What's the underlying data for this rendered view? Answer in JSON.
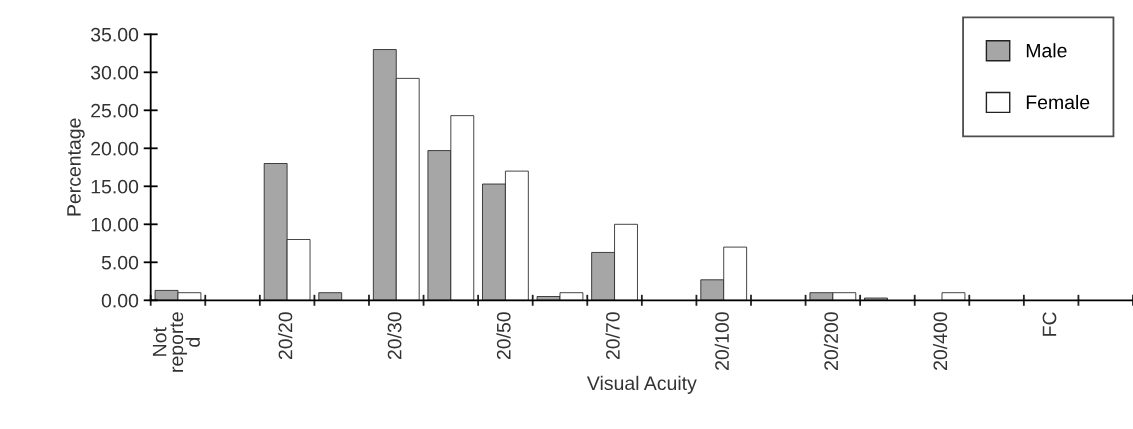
{
  "chart_data": {
    "type": "bar",
    "xlabel": "Visual Acuity",
    "ylabel": "Percentage",
    "categories": [
      "Not\nreporte\nd",
      null,
      "20/20",
      null,
      "20/30",
      null,
      "20/50",
      null,
      "20/70",
      null,
      "20/100",
      null,
      "20/200",
      null,
      "20/400",
      null,
      "FC",
      null
    ],
    "series": [
      {
        "name": "Male",
        "color": "#a6a6a6",
        "values": [
          1.3,
          null,
          18.0,
          1.0,
          33.0,
          19.7,
          15.3,
          0.5,
          6.3,
          null,
          2.7,
          null,
          1.0,
          0.3,
          null,
          null,
          null,
          null
        ]
      },
      {
        "name": "Female",
        "color": "#ffffff",
        "values": [
          1.0,
          null,
          8.0,
          null,
          29.2,
          24.3,
          17.0,
          1.0,
          10.0,
          null,
          7.0,
          null,
          1.0,
          null,
          1.0,
          null,
          null,
          null
        ]
      }
    ],
    "ylim": [
      0,
      35
    ],
    "yticks": [
      {
        "value": 0,
        "label": "0.00"
      },
      {
        "value": 5,
        "label": "5.00"
      },
      {
        "value": 10,
        "label": "10.00"
      },
      {
        "value": 15,
        "label": "15.00"
      },
      {
        "value": 20,
        "label": "20.00"
      },
      {
        "value": 25,
        "label": "25.00"
      },
      {
        "value": 30,
        "label": "30.00"
      },
      {
        "value": 35,
        "label": "35.00"
      }
    ],
    "legend": "top right",
    "grid": false
  }
}
